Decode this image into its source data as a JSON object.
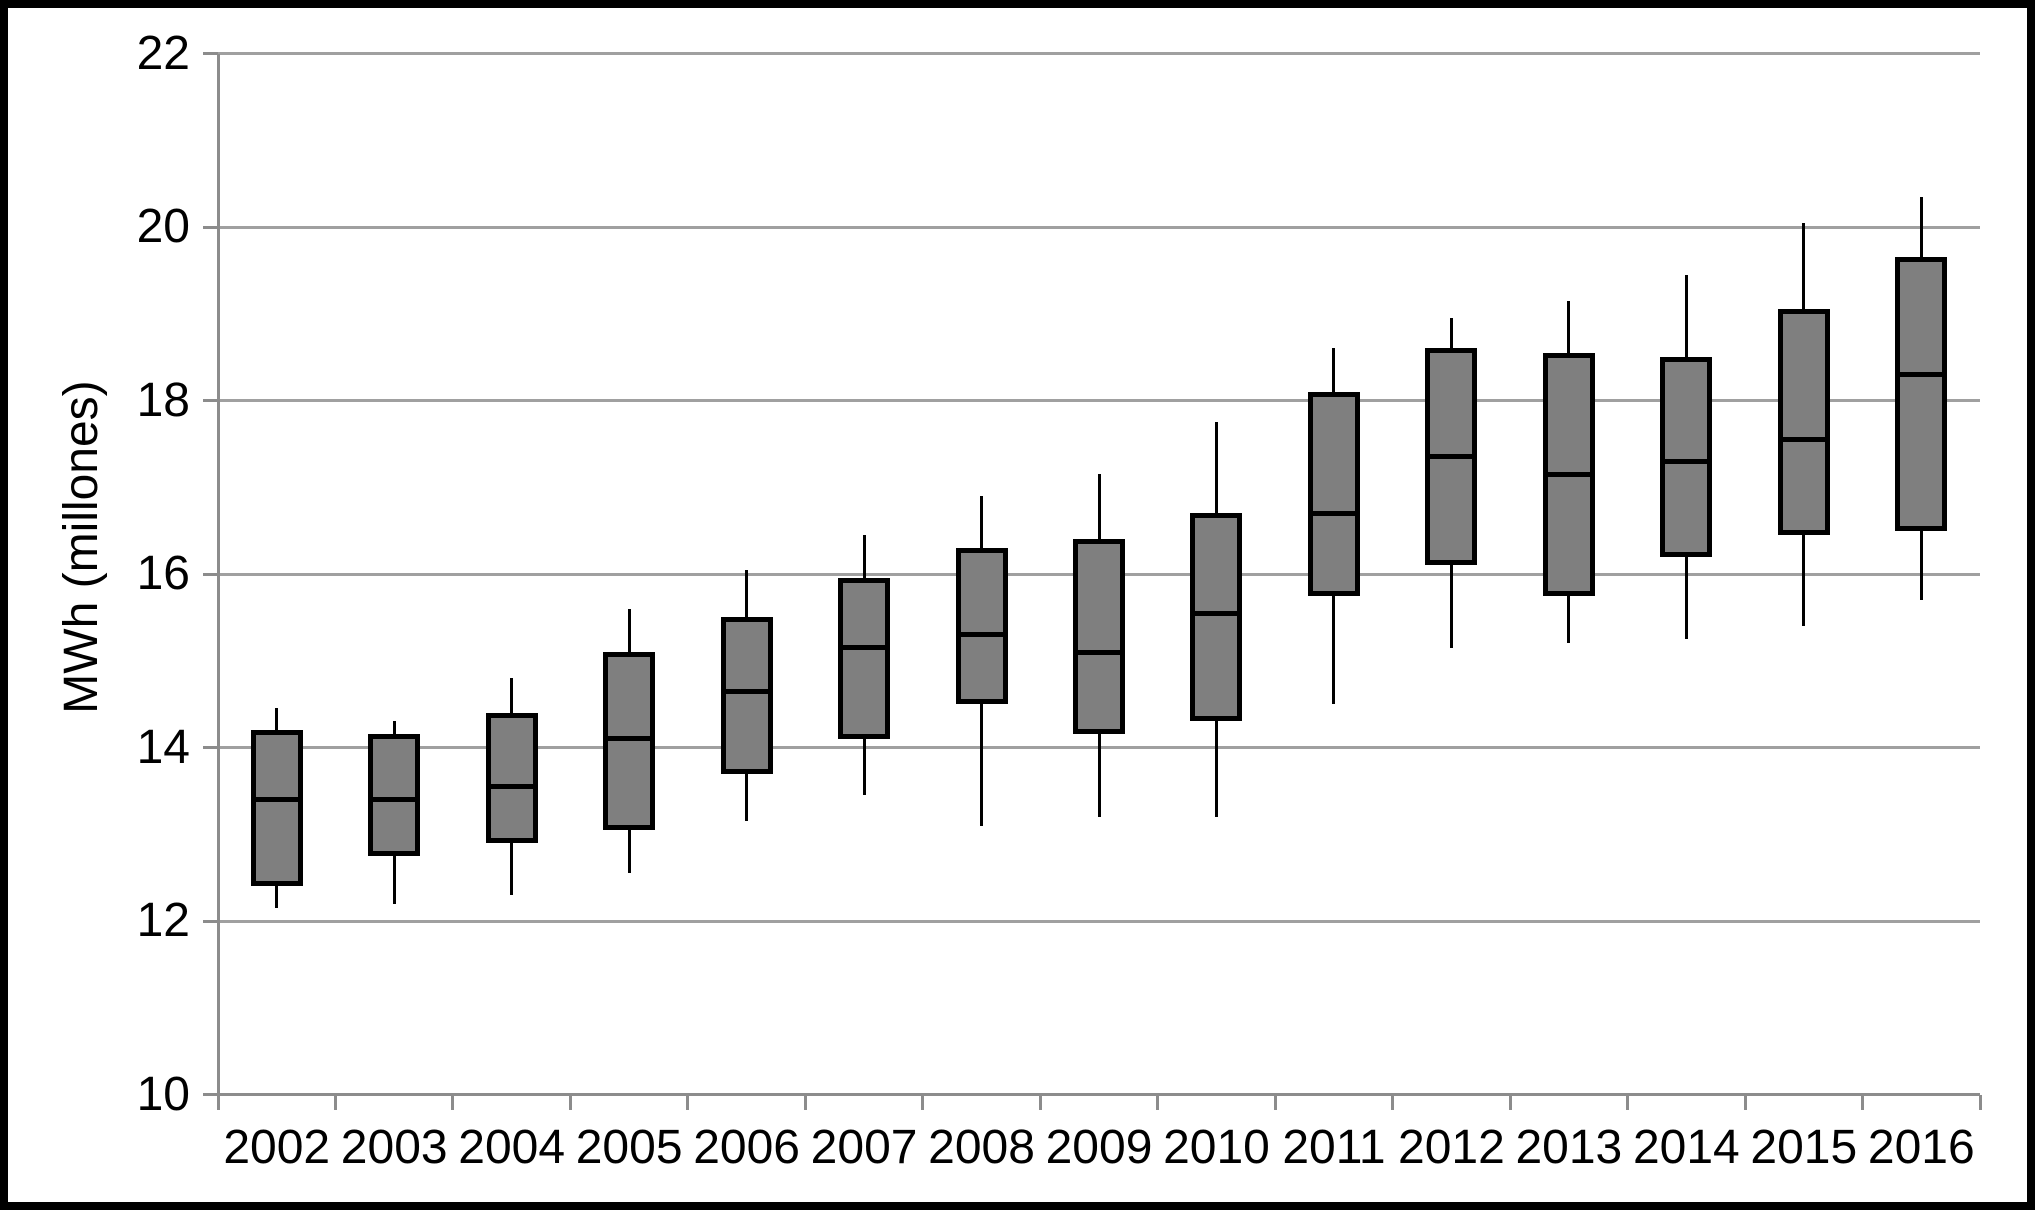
{
  "chart_data": {
    "type": "boxplot",
    "title": "",
    "xlabel": "",
    "ylabel": "MWh (millones)",
    "ylim": [
      10,
      22
    ],
    "y_ticks": [
      22,
      20,
      18,
      16,
      14,
      12,
      10
    ],
    "grid": true,
    "legend": false,
    "categories": [
      "2002",
      "2003",
      "2004",
      "2005",
      "2006",
      "2007",
      "2008",
      "2009",
      "2010",
      "2011",
      "2012",
      "2013",
      "2014",
      "2015",
      "2016"
    ],
    "series": [
      {
        "name": "MWh (millones)",
        "boxes": [
          {
            "year": "2002",
            "whisker_low": 12.15,
            "q1": 12.4,
            "median": 13.4,
            "q3": 14.2,
            "whisker_high": 14.45
          },
          {
            "year": "2003",
            "whisker_low": 12.2,
            "q1": 12.75,
            "median": 13.4,
            "q3": 14.15,
            "whisker_high": 14.3
          },
          {
            "year": "2004",
            "whisker_low": 12.3,
            "q1": 12.9,
            "median": 13.55,
            "q3": 14.4,
            "whisker_high": 14.8
          },
          {
            "year": "2005",
            "whisker_low": 12.55,
            "q1": 13.05,
            "median": 14.1,
            "q3": 15.1,
            "whisker_high": 15.6
          },
          {
            "year": "2006",
            "whisker_low": 13.15,
            "q1": 13.7,
            "median": 14.65,
            "q3": 15.5,
            "whisker_high": 16.05
          },
          {
            "year": "2007",
            "whisker_low": 13.45,
            "q1": 14.1,
            "median": 15.15,
            "q3": 15.95,
            "whisker_high": 16.45
          },
          {
            "year": "2008",
            "whisker_low": 13.1,
            "q1": 14.5,
            "median": 15.3,
            "q3": 16.3,
            "whisker_high": 16.9
          },
          {
            "year": "2009",
            "whisker_low": 13.2,
            "q1": 14.15,
            "median": 15.1,
            "q3": 16.4,
            "whisker_high": 17.15
          },
          {
            "year": "2010",
            "whisker_low": 13.2,
            "q1": 14.3,
            "median": 15.55,
            "q3": 16.7,
            "whisker_high": 17.75
          },
          {
            "year": "2011",
            "whisker_low": 14.5,
            "q1": 15.75,
            "median": 16.7,
            "q3": 18.1,
            "whisker_high": 18.6
          },
          {
            "year": "2012",
            "whisker_low": 15.15,
            "q1": 16.1,
            "median": 17.35,
            "q3": 18.6,
            "whisker_high": 18.95
          },
          {
            "year": "2013",
            "whisker_low": 15.2,
            "q1": 15.75,
            "median": 17.15,
            "q3": 18.55,
            "whisker_high": 19.15
          },
          {
            "year": "2014",
            "whisker_low": 15.25,
            "q1": 16.2,
            "median": 17.3,
            "q3": 18.5,
            "whisker_high": 19.45
          },
          {
            "year": "2015",
            "whisker_low": 15.4,
            "q1": 16.45,
            "median": 17.55,
            "q3": 19.05,
            "whisker_high": 20.05
          },
          {
            "year": "2016",
            "whisker_low": 15.7,
            "q1": 16.5,
            "median": 18.3,
            "q3": 19.65,
            "whisker_high": 20.35
          }
        ]
      }
    ],
    "colors": {
      "box_fill": "#7f7f7f",
      "box_border": "#000000",
      "median_line": "#000000",
      "whisker": "#000000",
      "gridline": "#a0a0a0",
      "axis": "#8c8c8c",
      "text": "#000000",
      "background": "#ffffff",
      "frame": "#000000"
    }
  }
}
